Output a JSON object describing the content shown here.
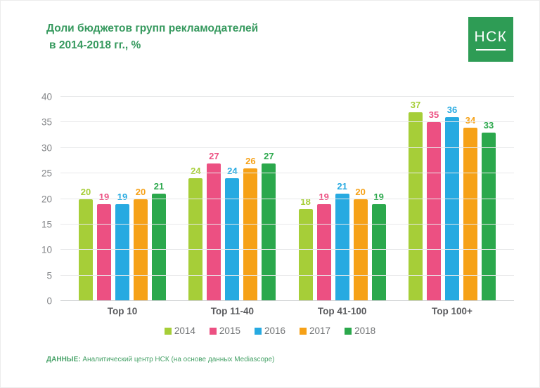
{
  "title": {
    "line1": "Доли бюджетов групп рекламодателей",
    "line2": "в 2014-2018 гг., %"
  },
  "logo": {
    "text": "НСК"
  },
  "chart_data": {
    "type": "bar",
    "title": "Доли бюджетов групп рекламодателей в 2014-2018 гг., %",
    "categories": [
      "Top 10",
      "Top 11-40",
      "Top 41-100",
      "Top 100+"
    ],
    "series": [
      {
        "name": "2014",
        "color": "#a6ce38",
        "values": [
          20,
          24,
          18,
          37
        ]
      },
      {
        "name": "2015",
        "color": "#ec5082",
        "values": [
          19,
          27,
          19,
          35
        ]
      },
      {
        "name": "2016",
        "color": "#27aae1",
        "values": [
          19,
          24,
          21,
          36
        ]
      },
      {
        "name": "2017",
        "color": "#f6a117",
        "values": [
          20,
          26,
          20,
          34
        ]
      },
      {
        "name": "2018",
        "color": "#2ba84c",
        "values": [
          21,
          27,
          19,
          33
        ]
      }
    ],
    "xlabel": "",
    "ylabel": "",
    "ylim": [
      0,
      40
    ],
    "yticks": [
      0,
      5,
      10,
      15,
      20,
      25,
      30,
      35,
      40
    ],
    "grid": true,
    "legend_position": "bottom",
    "value_labels": "above bars, colored per series"
  },
  "footer": {
    "label": "ДАННЫЕ:",
    "text": "Аналитический центр НСК (на основе данных Mediascope)"
  }
}
